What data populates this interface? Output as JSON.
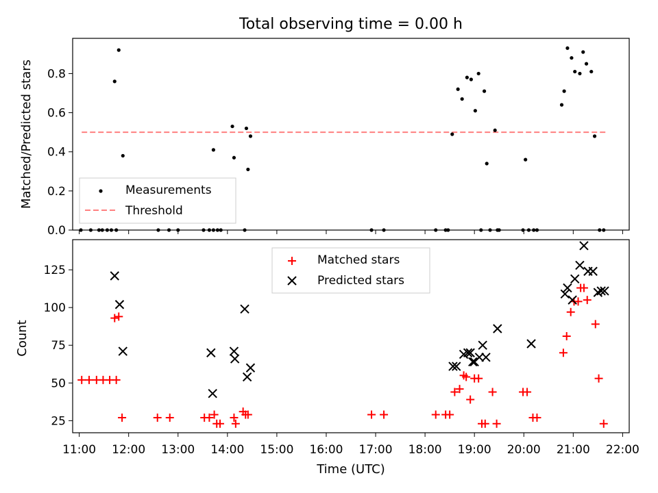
{
  "figure": {
    "title": "Total observing time = 0.00 h"
  },
  "chart_data": [
    {
      "type": "scatter",
      "title": "Total observing time = 0.00 h",
      "xlabel": "",
      "ylabel": "Matched/Predicted stars",
      "xlim": [
        "10:52",
        "22:08"
      ],
      "ylim": [
        0,
        0.98
      ],
      "yticks": [
        "0.0",
        "0.2",
        "0.4",
        "0.6",
        "0.8"
      ],
      "legend": {
        "placement": "lower-left",
        "entries": [
          "Measurements",
          "Threshold"
        ]
      },
      "colors": {
        "Measurements": "#000000",
        "Threshold": "#ff7f7f"
      },
      "threshold": {
        "name": "Threshold",
        "y": 0.5,
        "x_from": "11:03",
        "x_to": "21:40"
      },
      "series": [
        {
          "name": "Measurements",
          "x": [
            "11:02",
            "11:14",
            "11:24",
            "11:28",
            "11:34",
            "11:39",
            "11:45",
            "11:43",
            "11:48",
            "11:53",
            "12:36",
            "12:49",
            "13:00",
            "13:31",
            "13:38",
            "13:43",
            "13:48",
            "13:43",
            "13:52",
            "14:06",
            "14:08",
            "14:21",
            "14:23",
            "14:25",
            "14:28",
            "16:55",
            "17:10",
            "18:13",
            "18:25",
            "18:28",
            "18:33",
            "18:40",
            "18:45",
            "18:51",
            "18:56",
            "19:01",
            "19:05",
            "19:08",
            "19:12",
            "19:15",
            "19:19",
            "19:25",
            "19:28",
            "19:30",
            "19:59",
            "20:02",
            "20:06",
            "20:12",
            "20:16",
            "20:46",
            "20:49",
            "20:53",
            "20:58",
            "21:02",
            "21:08",
            "21:12",
            "21:16",
            "21:22",
            "21:26",
            "21:32",
            "21:37"
          ],
          "values": [
            0,
            0,
            0,
            0,
            0,
            0,
            0,
            0.76,
            0.92,
            0.38,
            0,
            0,
            0,
            0,
            0,
            0,
            0,
            0.41,
            0,
            0.53,
            0.37,
            0,
            0.52,
            0.31,
            0.48,
            0,
            0,
            0,
            0,
            0,
            0.49,
            0.72,
            0.67,
            0.78,
            0.77,
            0.61,
            0.8,
            0,
            0.71,
            0.34,
            0,
            0.51,
            0,
            0,
            0,
            0.36,
            0,
            0,
            0,
            0.64,
            0.71,
            0.93,
            0.88,
            0.81,
            0.8,
            0.91,
            0.85,
            0.81,
            0.48,
            0,
            0
          ]
        }
      ]
    },
    {
      "type": "scatter",
      "xlabel": "Time (UTC)",
      "ylabel": "Count",
      "xlim": [
        "10:52",
        "22:08"
      ],
      "ylim": [
        17,
        145
      ],
      "xticks": [
        "11:00",
        "12:00",
        "13:00",
        "14:00",
        "15:00",
        "16:00",
        "17:00",
        "18:00",
        "19:00",
        "20:00",
        "21:00",
        "22:00"
      ],
      "yticks": [
        "25",
        "50",
        "75",
        "100",
        "125"
      ],
      "legend": {
        "placement": "top-center",
        "entries": [
          "Matched stars",
          "Predicted stars"
        ]
      },
      "colors": {
        "Matched stars": "#ff0000",
        "Predicted stars": "#000000"
      },
      "series": [
        {
          "name": "Matched stars",
          "marker": "plus",
          "x": [
            "11:03",
            "11:12",
            "11:21",
            "11:29",
            "11:37",
            "11:45",
            "11:43",
            "11:48",
            "11:52",
            "12:35",
            "12:50",
            "13:32",
            "13:38",
            "13:44",
            "13:47",
            "13:51",
            "14:08",
            "14:10",
            "14:19",
            "14:22",
            "14:25",
            "16:55",
            "17:10",
            "18:13",
            "18:25",
            "18:30",
            "18:36",
            "18:42",
            "18:47",
            "18:50",
            "18:55",
            "19:00",
            "19:05",
            "19:09",
            "19:13",
            "19:22",
            "19:27",
            "19:59",
            "20:04",
            "20:11",
            "20:16",
            "20:48",
            "20:52",
            "20:57",
            "21:01",
            "21:06",
            "21:09",
            "21:13",
            "21:17",
            "21:27",
            "21:31",
            "21:37"
          ],
          "values": [
            52,
            52,
            52,
            52,
            52,
            52,
            93,
            94,
            27,
            27,
            27,
            27,
            27,
            29,
            23,
            23,
            27,
            23,
            31,
            29,
            29,
            29,
            29,
            29,
            29,
            29,
            44,
            46,
            55,
            54,
            39,
            53,
            53,
            23,
            23,
            44,
            23,
            44,
            44,
            27,
            27,
            70,
            81,
            97,
            104,
            104,
            113,
            113,
            105,
            89,
            53,
            23
          ]
        },
        {
          "name": "Predicted stars",
          "marker": "x",
          "x": [
            "11:43",
            "11:49",
            "11:53",
            "13:40",
            "13:42",
            "14:08",
            "14:09",
            "14:21",
            "14:24",
            "14:28",
            "18:34",
            "18:38",
            "18:47",
            "18:52",
            "18:55",
            "18:58",
            "19:00",
            "19:06",
            "19:10",
            "19:14",
            "19:28",
            "20:09",
            "20:50",
            "20:53",
            "20:59",
            "21:02",
            "21:08",
            "21:13",
            "21:18",
            "21:24",
            "21:30",
            "21:34",
            "21:38"
          ],
          "values": [
            121,
            102,
            71,
            70,
            43,
            71,
            66,
            99,
            54,
            60,
            61,
            61,
            69,
            70,
            70,
            64,
            64,
            67,
            75,
            67,
            86,
            76,
            109,
            113,
            105,
            119,
            128,
            141,
            124,
            124,
            110,
            111,
            111
          ]
        }
      ]
    }
  ]
}
